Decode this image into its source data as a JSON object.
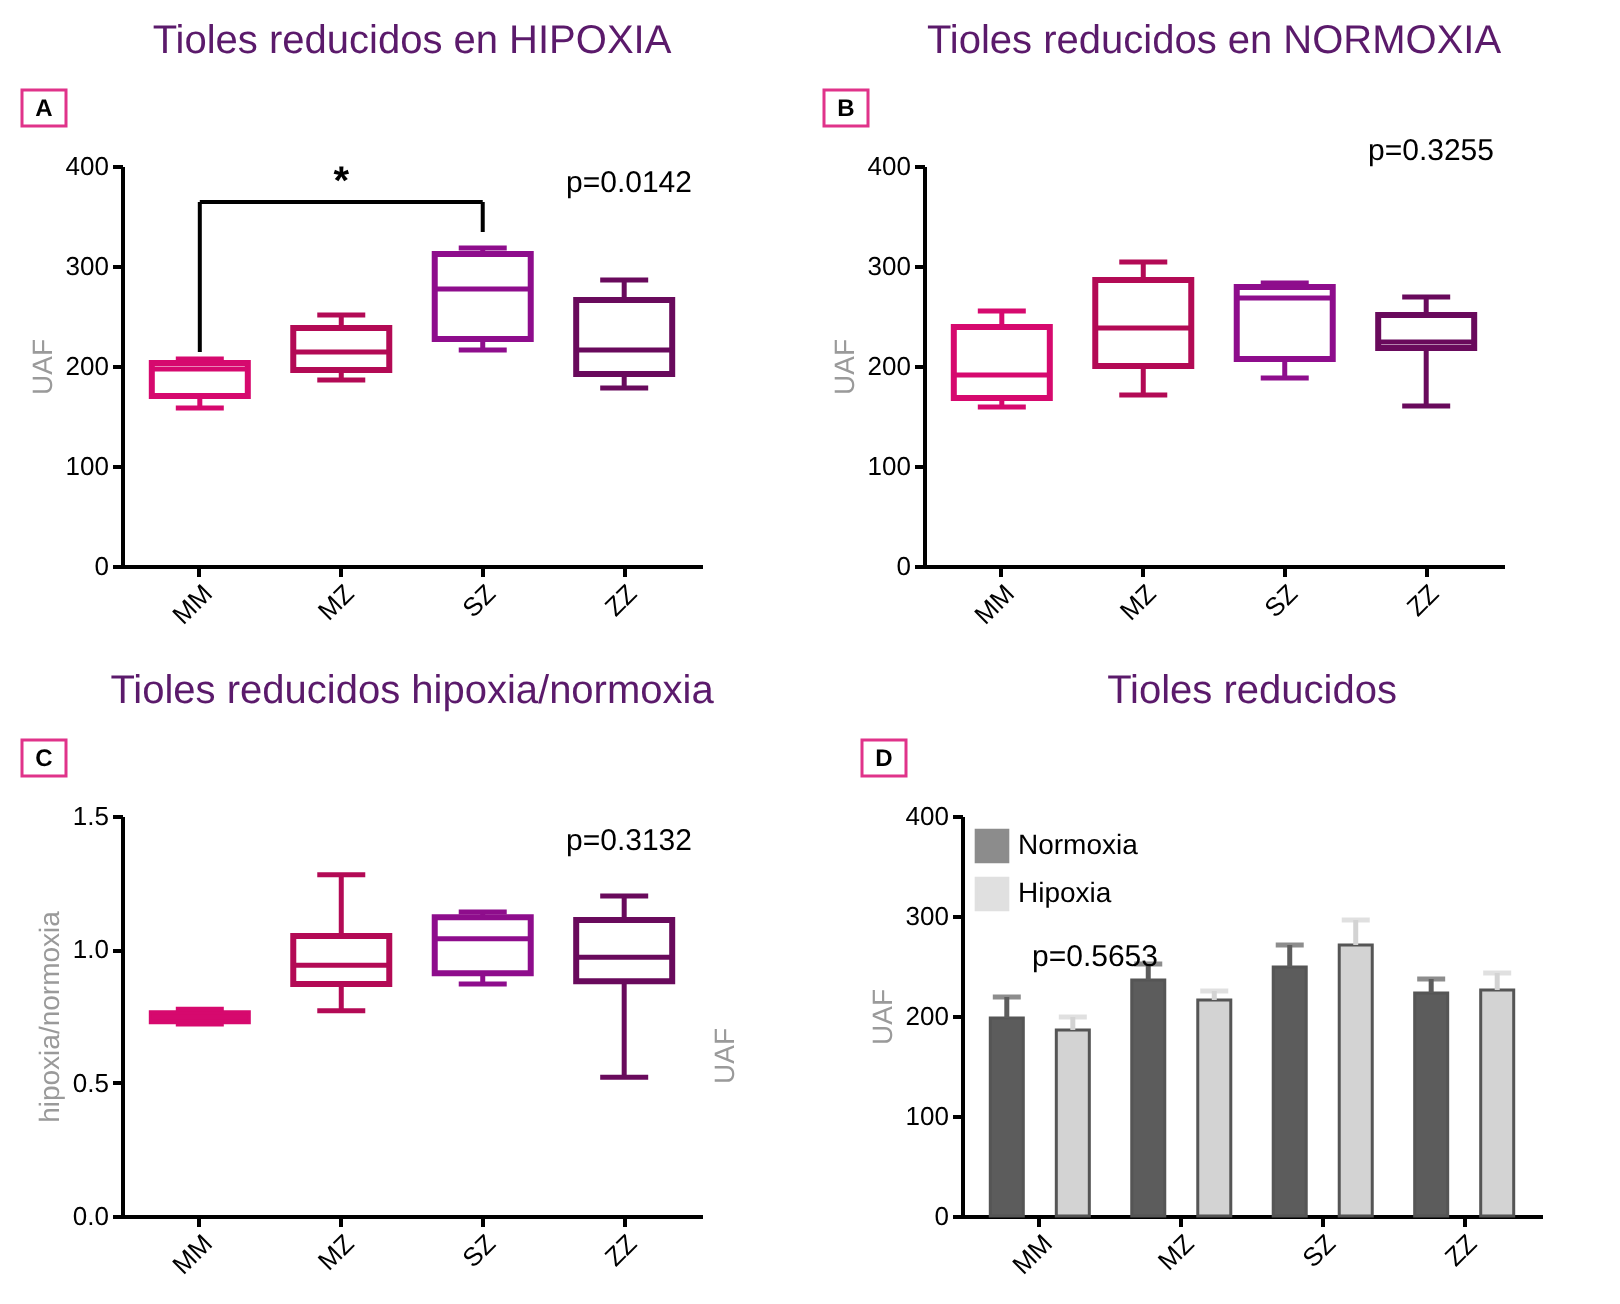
{
  "chart_data": [
    {
      "type": "box",
      "title": "Tioles reducidos en HIPOXIA",
      "categories": [
        "MM",
        "MZ",
        "SZ",
        "ZZ"
      ],
      "colors": [
        "#d6096e",
        "#b30a55",
        "#8e0d8c",
        "#690a5c"
      ],
      "boxes": [
        {
          "low": 158,
          "q1": 170,
          "median": 197,
          "q3": 203,
          "high": 207
        },
        {
          "low": 186,
          "q1": 196,
          "median": 214,
          "q3": 238,
          "high": 251
        },
        {
          "low": 216,
          "q1": 227,
          "median": 277,
          "q3": 312,
          "high": 318
        },
        {
          "low": 178,
          "q1": 192,
          "median": 216,
          "q3": 266,
          "high": 286
        }
      ],
      "ylabel": "UAF",
      "ylim": [
        0,
        400
      ],
      "yticks": [
        0,
        100,
        200,
        300,
        400
      ],
      "grid": false,
      "annotations": [
        "A",
        "p=0.0142",
        "*"
      ]
    },
    {
      "type": "box",
      "title": "Tioles reducidos en NORMOXIA",
      "categories": [
        "MM",
        "MZ",
        "SZ",
        "ZZ"
      ],
      "colors": [
        "#d6096e",
        "#b30a55",
        "#8e0d8c",
        "#690a5c"
      ],
      "boxes": [
        {
          "low": 159,
          "q1": 168,
          "median": 191,
          "q3": 239,
          "high": 255
        },
        {
          "low": 171,
          "q1": 200,
          "median": 238,
          "q3": 286,
          "high": 304
        },
        {
          "low": 188,
          "q1": 207,
          "median": 268,
          "q3": 279,
          "high": 283
        },
        {
          "low": 160,
          "q1": 218,
          "median": 224,
          "q3": 251,
          "high": 269
        }
      ],
      "ylabel": "UAF",
      "ylim": [
        0,
        400
      ],
      "yticks": [
        0,
        100,
        200,
        300,
        400
      ],
      "grid": false,
      "annotations": [
        "B",
        "p=0.3255"
      ]
    },
    {
      "type": "box",
      "title": "Tioles reducidos hipoxia/normoxia",
      "categories": [
        "MM",
        "MZ",
        "SZ",
        "ZZ"
      ],
      "colors": [
        "#d6096e",
        "#b30a55",
        "#8e0d8c",
        "#690a5c"
      ],
      "boxes": [
        {
          "low": 0.72,
          "q1": 0.73,
          "median": 0.745,
          "q3": 0.76,
          "high": 0.775
        },
        {
          "low": 0.77,
          "q1": 0.87,
          "median": 0.94,
          "q3": 1.05,
          "high": 1.28
        },
        {
          "low": 0.87,
          "q1": 0.91,
          "median": 1.04,
          "q3": 1.12,
          "high": 1.14
        },
        {
          "low": 0.52,
          "q1": 0.88,
          "median": 0.97,
          "q3": 1.11,
          "high": 1.2
        }
      ],
      "ylabel": "hipoxia/normoxia",
      "ylim": [
        0,
        1.5
      ],
      "yticks": [
        {
          "value": 0,
          "label": "0.0"
        },
        {
          "value": 0.5,
          "label": "0.5"
        },
        {
          "value": 1,
          "label": "1.0"
        },
        {
          "value": 1.5,
          "label": "1.5"
        }
      ],
      "grid": false,
      "annotations": [
        "C",
        "p=0.3132",
        "UAF"
      ]
    },
    {
      "type": "bar",
      "title": "Tioles reducidos",
      "categories": [
        "MM",
        "MZ",
        "SZ",
        "ZZ"
      ],
      "series": [
        {
          "name": "Normoxia",
          "color": "#5c5c5c",
          "values": [
            198,
            236,
            249,
            223
          ],
          "errors": [
            [
              198,
              219
            ],
            [
              236,
              252
            ],
            [
              249,
              271
            ],
            [
              223,
              237
            ]
          ]
        },
        {
          "name": "Hipoxia",
          "color": "#d3d3d3",
          "values": [
            186,
            216,
            271,
            226
          ],
          "errors": [
            [
              186,
              199
            ],
            [
              216,
              225
            ],
            [
              271,
              296
            ],
            [
              226,
              243
            ]
          ]
        }
      ],
      "ylabel": "UAF",
      "ylim": [
        0,
        400
      ],
      "yticks": [
        0,
        100,
        200,
        300,
        400
      ],
      "grid": false,
      "legend": "top left",
      "annotations": [
        "D",
        "p=0.5653"
      ]
    }
  ]
}
